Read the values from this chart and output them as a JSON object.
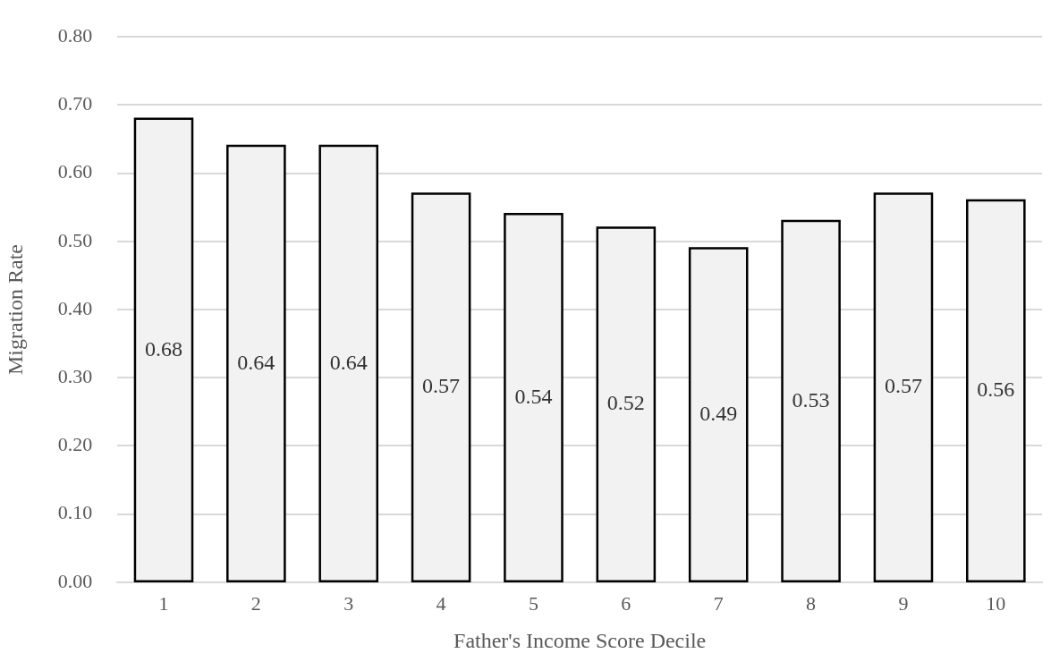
{
  "chart_data": {
    "type": "bar",
    "xlabel": "Father's Income Score Decile",
    "ylabel": "Migration Rate",
    "categories": [
      "1",
      "2",
      "3",
      "4",
      "5",
      "6",
      "7",
      "8",
      "9",
      "10"
    ],
    "values": [
      0.68,
      0.64,
      0.64,
      0.57,
      0.54,
      0.52,
      0.49,
      0.53,
      0.57,
      0.56
    ],
    "color": "#f2f2f2",
    "data_labels": true,
    "grid": "y",
    "legend": false,
    "ylim": [
      0,
      0.8
    ],
    "yticks": [
      {
        "value": 0,
        "label": "0.00"
      },
      {
        "value": 0.1,
        "label": "0.10"
      },
      {
        "value": 0.2,
        "label": "0.20"
      },
      {
        "value": 0.3,
        "label": "0.30"
      },
      {
        "value": 0.4,
        "label": "0.40"
      },
      {
        "value": 0.5,
        "label": "0.50"
      },
      {
        "value": 0.6,
        "label": "0.60"
      },
      {
        "value": 0.7,
        "label": "0.70"
      },
      {
        "value": 0.8,
        "label": "0.80"
      }
    ]
  }
}
